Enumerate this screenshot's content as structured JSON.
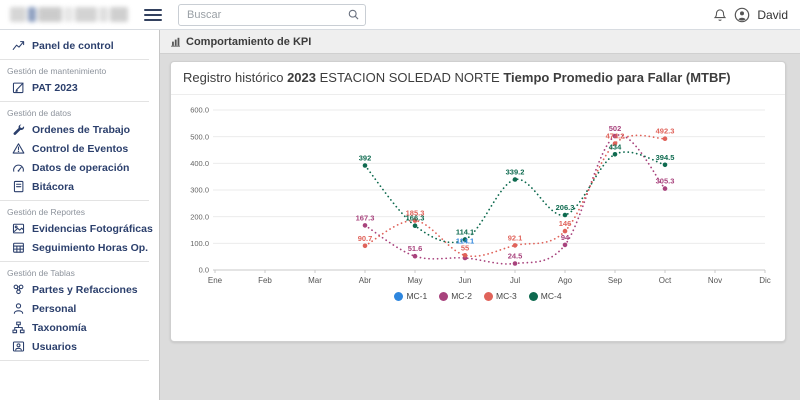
{
  "topbar": {
    "search": {
      "placeholder": "Buscar"
    },
    "user": {
      "name": "David"
    }
  },
  "sidebar": {
    "sections": [
      {
        "label": null,
        "items": [
          {
            "label": "Panel de control",
            "icon": "chart-line-icon"
          }
        ]
      },
      {
        "label": "Gestión de mantenimiento",
        "items": [
          {
            "label": "PAT 2023",
            "icon": "pencil-square-icon"
          }
        ]
      },
      {
        "label": "Gestión de datos",
        "items": [
          {
            "label": "Ordenes de Trabajo",
            "icon": "wrench-icon"
          },
          {
            "label": "Control de Eventos",
            "icon": "warning-triangle-icon"
          },
          {
            "label": "Datos de operación",
            "icon": "gauge-icon"
          },
          {
            "label": "Bitácora",
            "icon": "journal-icon"
          }
        ]
      },
      {
        "label": "Gestión de Reportes",
        "items": [
          {
            "label": "Evidencias Fotográficas",
            "icon": "photo-icon"
          },
          {
            "label": "Seguimiento Horas Op.",
            "icon": "table-calendar-icon"
          }
        ]
      },
      {
        "label": "Gestión de Tablas",
        "items": [
          {
            "label": "Partes y Refacciones",
            "icon": "parts-icon"
          },
          {
            "label": "Personal",
            "icon": "person-icon"
          },
          {
            "label": "Taxonomía",
            "icon": "sitemap-icon"
          },
          {
            "label": "Usuarios",
            "icon": "user-badge-icon"
          }
        ]
      }
    ]
  },
  "main": {
    "breadcrumb": "Comportamiento de KPI",
    "card_title": {
      "prefix": "Registro histórico",
      "year": "2023",
      "station": "ESTACION SOLEDAD NORTE",
      "kpi": "Tiempo Promedio para Fallar (MTBF)",
      "kpi_color": "#2e7cd6"
    }
  },
  "chart_data": {
    "type": "line",
    "title": "Registro histórico 2023 ESTACION SOLEDAD NORTE Tiempo Promedio para Fallar (MTBF)",
    "x_categories": [
      "Ene",
      "Feb",
      "Mar",
      "Abr",
      "May",
      "Jun",
      "Jul",
      "Ago",
      "Sep",
      "Oct",
      "Nov",
      "Dic"
    ],
    "ylim": [
      0,
      600
    ],
    "y_tick_labels": [
      "0.0",
      "100.0",
      "200.0",
      "300.0",
      "400.0",
      "500.0",
      "600.0"
    ],
    "grid": true,
    "line_style": "dotted",
    "legend_position": "bottom-center",
    "series": [
      {
        "name": "MC-1",
        "color": "#2e86de",
        "points": [
          {
            "x": "Jun",
            "y": 114.1,
            "label": "114.1",
            "label_dy": 9
          }
        ]
      },
      {
        "name": "MC-2",
        "color": "#a8437d",
        "points": [
          {
            "x": "Abr",
            "y": 167.3,
            "label": "167.3"
          },
          {
            "x": "May",
            "y": 51.6,
            "label": "51.6"
          },
          {
            "x": "Jun",
            "y": 45,
            "label": null
          },
          {
            "x": "Jul",
            "y": 24.5,
            "label": "24.5"
          },
          {
            "x": "Ago",
            "y": 94,
            "label": "94"
          },
          {
            "x": "Sep",
            "y": 502,
            "label": "502"
          },
          {
            "x": "Oct",
            "y": 305.3,
            "label": "305.3"
          }
        ]
      },
      {
        "name": "MC-3",
        "color": "#e0635a",
        "points": [
          {
            "x": "Abr",
            "y": 90.7,
            "label": "90.7"
          },
          {
            "x": "May",
            "y": 185.3,
            "label": "185.3"
          },
          {
            "x": "Jun",
            "y": 55,
            "label": "55"
          },
          {
            "x": "Jul",
            "y": 92.1,
            "label": "92.1"
          },
          {
            "x": "Ago",
            "y": 146,
            "label": "146"
          },
          {
            "x": "Sep",
            "y": 474.2,
            "label": "474.2"
          },
          {
            "x": "Oct",
            "y": 492.3,
            "label": "492.3"
          }
        ]
      },
      {
        "name": "MC-4",
        "color": "#0e6a4f",
        "points": [
          {
            "x": "Abr",
            "y": 392,
            "label": "392"
          },
          {
            "x": "May",
            "y": 166.3,
            "label": "166.3"
          },
          {
            "x": "Jun",
            "y": 114.1,
            "label": "114.1"
          },
          {
            "x": "Jul",
            "y": 339.2,
            "label": "339.2"
          },
          {
            "x": "Ago",
            "y": 206.3,
            "label": "206.3"
          },
          {
            "x": "Sep",
            "y": 434,
            "label": "434"
          },
          {
            "x": "Oct",
            "y": 394.5,
            "label": "394.5"
          }
        ]
      }
    ]
  }
}
